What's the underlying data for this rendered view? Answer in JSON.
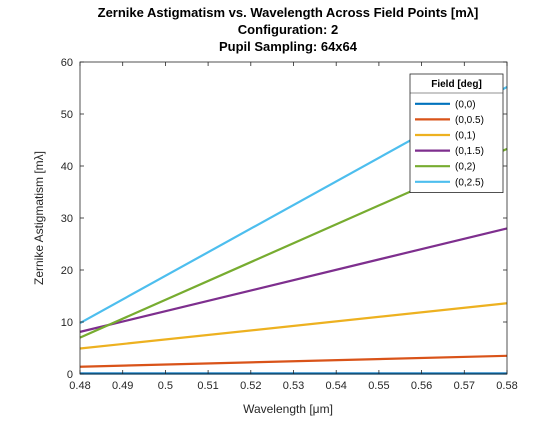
{
  "chart_data": {
    "type": "line",
    "title_lines": [
      "Zernike Astigmatism vs. Wavelength Across Field Points [mλ]",
      "Configuration: 2",
      "Pupil Sampling: 64x64"
    ],
    "xlabel": "Wavelength [μm]",
    "ylabel": "Zernike Astigmatism [mλ]",
    "xlim": [
      0.48,
      0.58
    ],
    "ylim": [
      0,
      60
    ],
    "xticks": [
      0.48,
      0.49,
      0.5,
      0.51,
      0.52,
      0.53,
      0.54,
      0.55,
      0.56,
      0.57,
      0.58
    ],
    "xtick_labels": [
      "0.48",
      "0.49",
      "0.5",
      "0.51",
      "0.52",
      "0.53",
      "0.54",
      "0.55",
      "0.56",
      "0.57",
      "0.58"
    ],
    "yticks": [
      0,
      10,
      20,
      30,
      40,
      50,
      60
    ],
    "ytick_labels": [
      "0",
      "10",
      "20",
      "30",
      "40",
      "50",
      "60"
    ],
    "grid": false,
    "legend": {
      "title": "Field [deg]",
      "position": "top-right"
    },
    "series": [
      {
        "name": "(0,0)",
        "color": "#0072BD",
        "x": [
          0.48,
          0.58
        ],
        "y": [
          0.1,
          0.1
        ]
      },
      {
        "name": "(0,0.5)",
        "color": "#D95319",
        "x": [
          0.48,
          0.58
        ],
        "y": [
          1.4,
          3.5
        ]
      },
      {
        "name": "(0,1)",
        "color": "#EDB120",
        "x": [
          0.48,
          0.58
        ],
        "y": [
          4.9,
          13.6
        ]
      },
      {
        "name": "(0,1.5)",
        "color": "#7E2F8E",
        "x": [
          0.48,
          0.58
        ],
        "y": [
          8.1,
          28.0
        ]
      },
      {
        "name": "(0,2)",
        "color": "#77AC30",
        "x": [
          0.48,
          0.58
        ],
        "y": [
          7.0,
          43.3
        ]
      },
      {
        "name": "(0,2.5)",
        "color": "#4DBEEE",
        "x": [
          0.48,
          0.58
        ],
        "y": [
          9.8,
          55.2
        ]
      }
    ]
  }
}
